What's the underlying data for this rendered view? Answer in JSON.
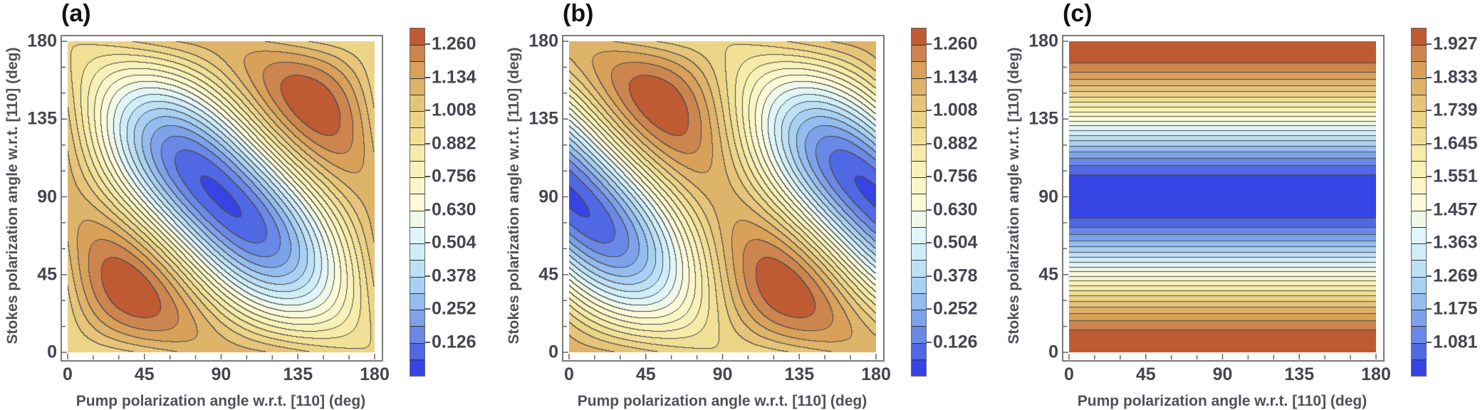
{
  "chart_data": [
    {
      "type": "heatmap",
      "style": "filled-contour",
      "panel_label": "(a)",
      "xlabel": "Pump polarization angle w.r.t. [110] (deg)",
      "ylabel": "Stokes polarization angle w.r.t. [110] (deg)",
      "xlim": [
        0,
        180
      ],
      "ylim": [
        0,
        180
      ],
      "x_ticks": [
        "0",
        "45",
        "90",
        "135",
        "180"
      ],
      "y_ticks": [
        "0",
        "45",
        "90",
        "135",
        "180"
      ],
      "grid_x_deg": [
        0,
        30,
        60,
        90,
        120,
        150
      ],
      "grid_y_deg": [
        0,
        30,
        60,
        90,
        120,
        150
      ],
      "period_deg": 180,
      "z": [
        [
          0.95,
          0.988,
          1.063,
          1.1,
          1.063,
          0.988
        ],
        [
          0.988,
          1.288,
          1.213,
          0.838,
          0.538,
          0.613
        ],
        [
          1.063,
          1.213,
          0.838,
          0.313,
          0.163,
          0.538
        ],
        [
          1.1,
          0.838,
          0.313,
          0.05,
          0.313,
          0.838
        ],
        [
          1.063,
          0.538,
          0.163,
          0.313,
          0.838,
          1.213
        ],
        [
          0.988,
          0.613,
          0.538,
          0.838,
          1.213,
          1.288
        ]
      ],
      "colorbar": {
        "min": 0,
        "step": 0.063,
        "bands": 21,
        "tick_labels": [
          "0.126",
          "0.252",
          "0.378",
          "0.504",
          "0.630",
          "0.756",
          "0.882",
          "1.008",
          "1.134",
          "1.260"
        ]
      }
    },
    {
      "type": "heatmap",
      "style": "filled-contour",
      "panel_label": "(b)",
      "xlabel": "Pump polarization angle w.r.t. [110] (deg)",
      "ylabel": "Stokes polarization angle w.r.t. [110] (deg)",
      "xlim": [
        0,
        180
      ],
      "ylim": [
        0,
        180
      ],
      "x_ticks": [
        "0",
        "45",
        "90",
        "135",
        "180"
      ],
      "y_ticks": [
        "0",
        "45",
        "90",
        "135",
        "180"
      ],
      "grid_x_deg": [
        0,
        30,
        60,
        90,
        120,
        150
      ],
      "grid_y_deg": [
        0,
        30,
        60,
        90,
        120,
        150
      ],
      "period_deg": 180,
      "z": [
        [
          1.1,
          1.063,
          0.988,
          0.95,
          0.988,
          1.063
        ],
        [
          0.838,
          0.538,
          0.613,
          0.988,
          1.288,
          1.213
        ],
        [
          0.313,
          0.163,
          0.538,
          1.063,
          1.213,
          0.838
        ],
        [
          0.05,
          0.313,
          0.838,
          1.1,
          0.838,
          0.313
        ],
        [
          0.313,
          0.838,
          1.213,
          1.063,
          0.538,
          0.163
        ],
        [
          0.838,
          1.213,
          1.288,
          0.988,
          0.613,
          0.538
        ]
      ],
      "colorbar": {
        "min": 0,
        "step": 0.063,
        "bands": 21,
        "tick_labels": [
          "0.126",
          "0.252",
          "0.378",
          "0.504",
          "0.630",
          "0.756",
          "0.882",
          "1.008",
          "1.134",
          "1.260"
        ]
      }
    },
    {
      "type": "heatmap",
      "style": "filled-contour",
      "panel_label": "(c)",
      "xlabel": "Pump polarization angle w.r.t. [110] (deg)",
      "ylabel": "Stokes polarization angle w.r.t. [110] (deg)",
      "xlim": [
        0,
        180
      ],
      "ylim": [
        0,
        180
      ],
      "x_ticks": [
        "0",
        "45",
        "90",
        "135",
        "180"
      ],
      "y_ticks": [
        "0",
        "45",
        "90",
        "135",
        "180"
      ],
      "grid_x_deg": [
        0,
        30,
        60,
        90,
        120,
        150
      ],
      "grid_y_deg": [
        0,
        30,
        60,
        90,
        120,
        150
      ],
      "period_deg": 180,
      "z": [
        [
          1.974,
          1.974,
          1.974,
          1.974,
          1.974,
          1.974
        ],
        [
          1.727,
          1.727,
          1.727,
          1.727,
          1.727,
          1.727
        ],
        [
          1.234,
          1.234,
          1.234,
          1.234,
          1.234,
          1.234
        ],
        [
          0.987,
          0.987,
          0.987,
          0.987,
          0.987,
          0.987
        ],
        [
          1.234,
          1.234,
          1.234,
          1.234,
          1.234,
          1.234
        ],
        [
          1.727,
          1.727,
          1.727,
          1.727,
          1.727,
          1.727
        ]
      ],
      "colorbar": {
        "min": 0.987,
        "step": 0.047,
        "bands": 21,
        "tick_labels": [
          "1.081",
          "1.175",
          "1.269",
          "1.363",
          "1.457",
          "1.551",
          "1.645",
          "1.739",
          "1.833",
          "1.927"
        ]
      }
    }
  ],
  "colors": {
    "band_colors_low_to_high": [
      "#3644e4",
      "#5068e4",
      "#6a88e6",
      "#7ea2ea",
      "#94bcee",
      "#a8d0f2",
      "#bde0f4",
      "#d0eef8",
      "#e0f6f8",
      "#f0f8e8",
      "#fcfad8",
      "#fbf6c8",
      "#f9f2b8",
      "#f6eba8",
      "#f1e095",
      "#ecd487",
      "#e6c479",
      "#deb36a",
      "#d9a05a",
      "#cd8550",
      "#bf5b33"
    ],
    "contour_line": "#4a4a4a"
  }
}
